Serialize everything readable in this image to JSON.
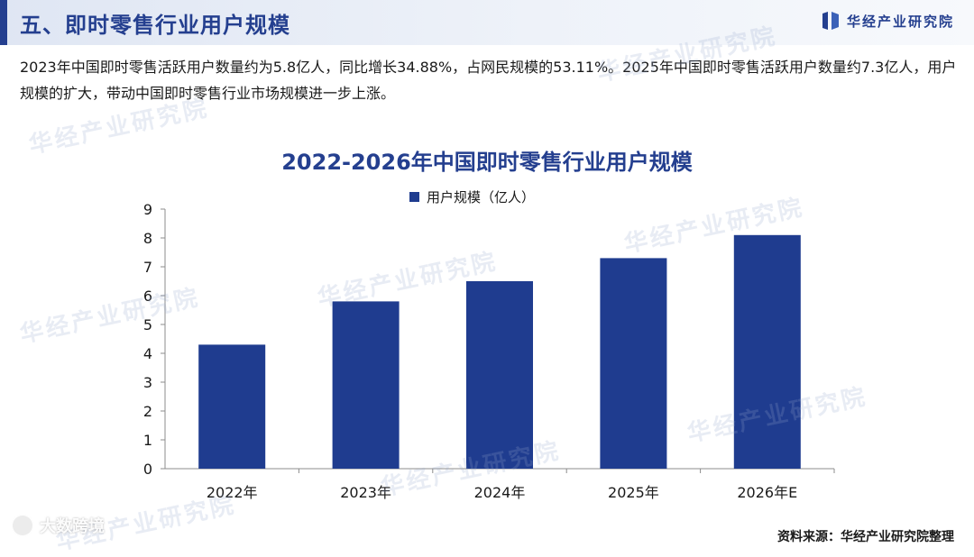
{
  "header": {
    "title": "五、即时零售行业用户规模",
    "brand": "华经产业研究院"
  },
  "intro": {
    "text": "2023年中国即时零售活跃用户数量约为5.8亿人，同比增长34.88%，占网民规模的53.11%。2025年中国即时零售活跃用户数量约7.3亿人，用户规模的扩大，带动中国即时零售行业市场规模进一步上涨。"
  },
  "chart_data": {
    "type": "bar",
    "title": "2022-2026年中国即时零售行业用户规模",
    "categories": [
      "2022年",
      "2023年",
      "2024年",
      "2025年",
      "2026年E"
    ],
    "series": [
      {
        "name": "用户规模（亿人）",
        "values": [
          4.3,
          5.8,
          6.5,
          7.3,
          8.1
        ]
      }
    ],
    "y_ticks": [
      "0",
      "1",
      "2",
      "3",
      "4",
      "5",
      "6",
      "7",
      "8",
      "9"
    ],
    "ylim": [
      0,
      9
    ],
    "xlabel": "",
    "ylabel": "",
    "grid": false,
    "legend_position": "top-center",
    "bar_color": "#1f3c8f"
  },
  "watermark": {
    "text": "华经产业研究院",
    "badge": "大数跨境"
  },
  "footer": {
    "source": "资料来源：华经产业研究院整理"
  },
  "colors": {
    "accent": "#243f8f",
    "bar": "#1f3c8f"
  }
}
